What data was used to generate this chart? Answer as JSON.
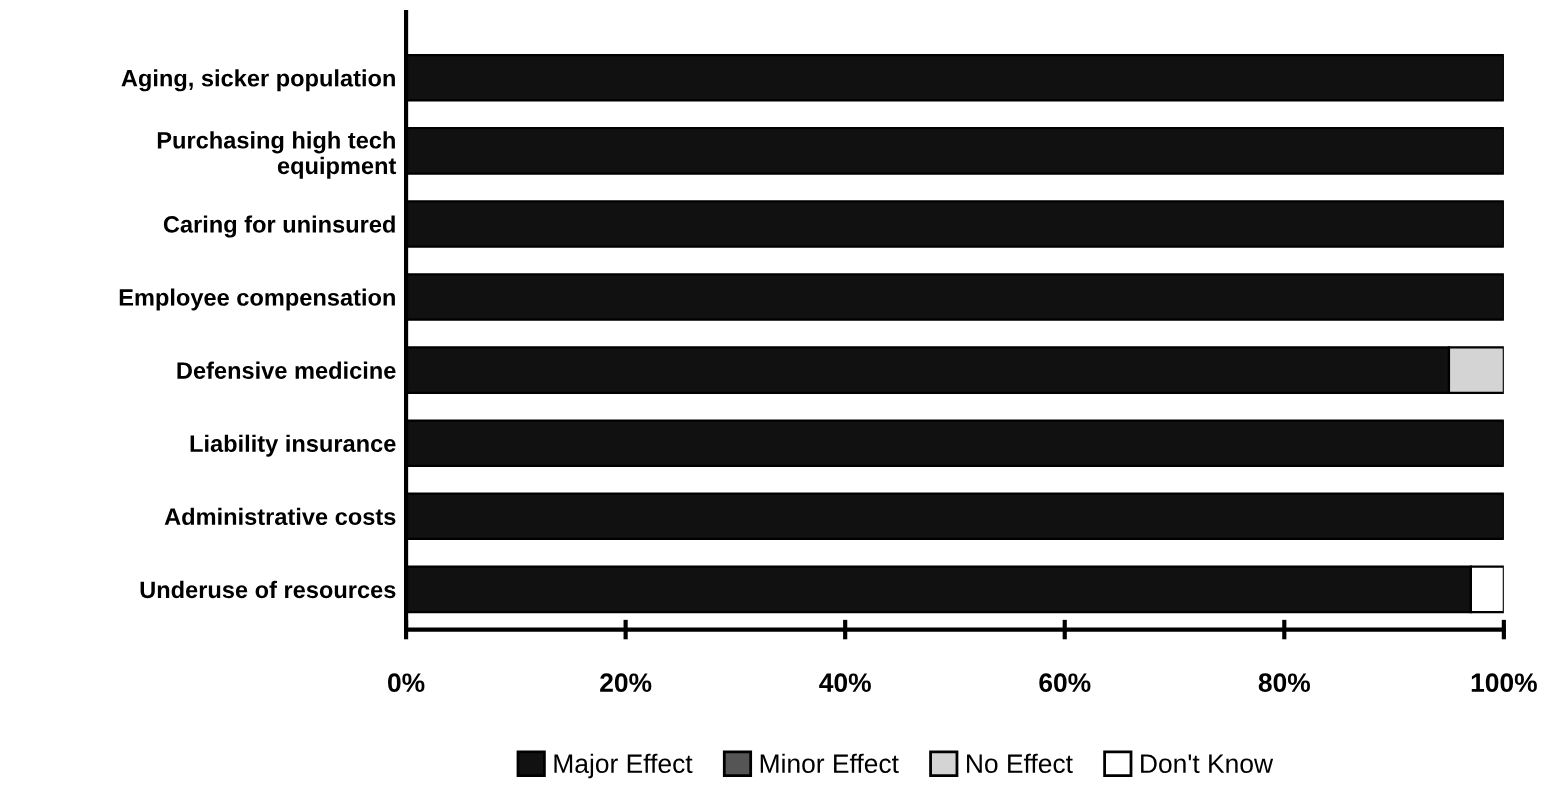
{
  "chart_data": {
    "type": "bar",
    "orientation": "horizontal",
    "stacked": true,
    "categories": [
      "Aging, sicker population",
      "Purchasing high tech\nequipment",
      "Caring for uninsured",
      "Employee compensation",
      "Defensive medicine",
      "Liability insurance",
      "Administrative costs",
      "Underuse of resources"
    ],
    "series": [
      {
        "name": "Major Effect",
        "color": "#111111",
        "values": [
          100,
          100,
          100,
          100,
          95,
          100,
          100,
          97
        ]
      },
      {
        "name": "Minor Effect",
        "color": "#555555",
        "values": [
          0,
          0,
          0,
          0,
          0,
          0,
          0,
          0
        ]
      },
      {
        "name": "No Effect",
        "color": "#d4d4d4",
        "values": [
          0,
          0,
          0,
          0,
          5,
          0,
          0,
          0
        ]
      },
      {
        "name": "Don't Know",
        "color": "#ffffff",
        "values": [
          0,
          0,
          0,
          0,
          0,
          0,
          0,
          3
        ]
      }
    ],
    "xlim": [
      0,
      100
    ],
    "xticks": [
      {
        "value": 0,
        "label": "0%"
      },
      {
        "value": 20,
        "label": "20%"
      },
      {
        "value": 40,
        "label": "40%"
      },
      {
        "value": 60,
        "label": "60%"
      },
      {
        "value": 80,
        "label": "80%"
      },
      {
        "value": 100,
        "label": "100%"
      }
    ],
    "grid": false,
    "legend": "bottom"
  }
}
